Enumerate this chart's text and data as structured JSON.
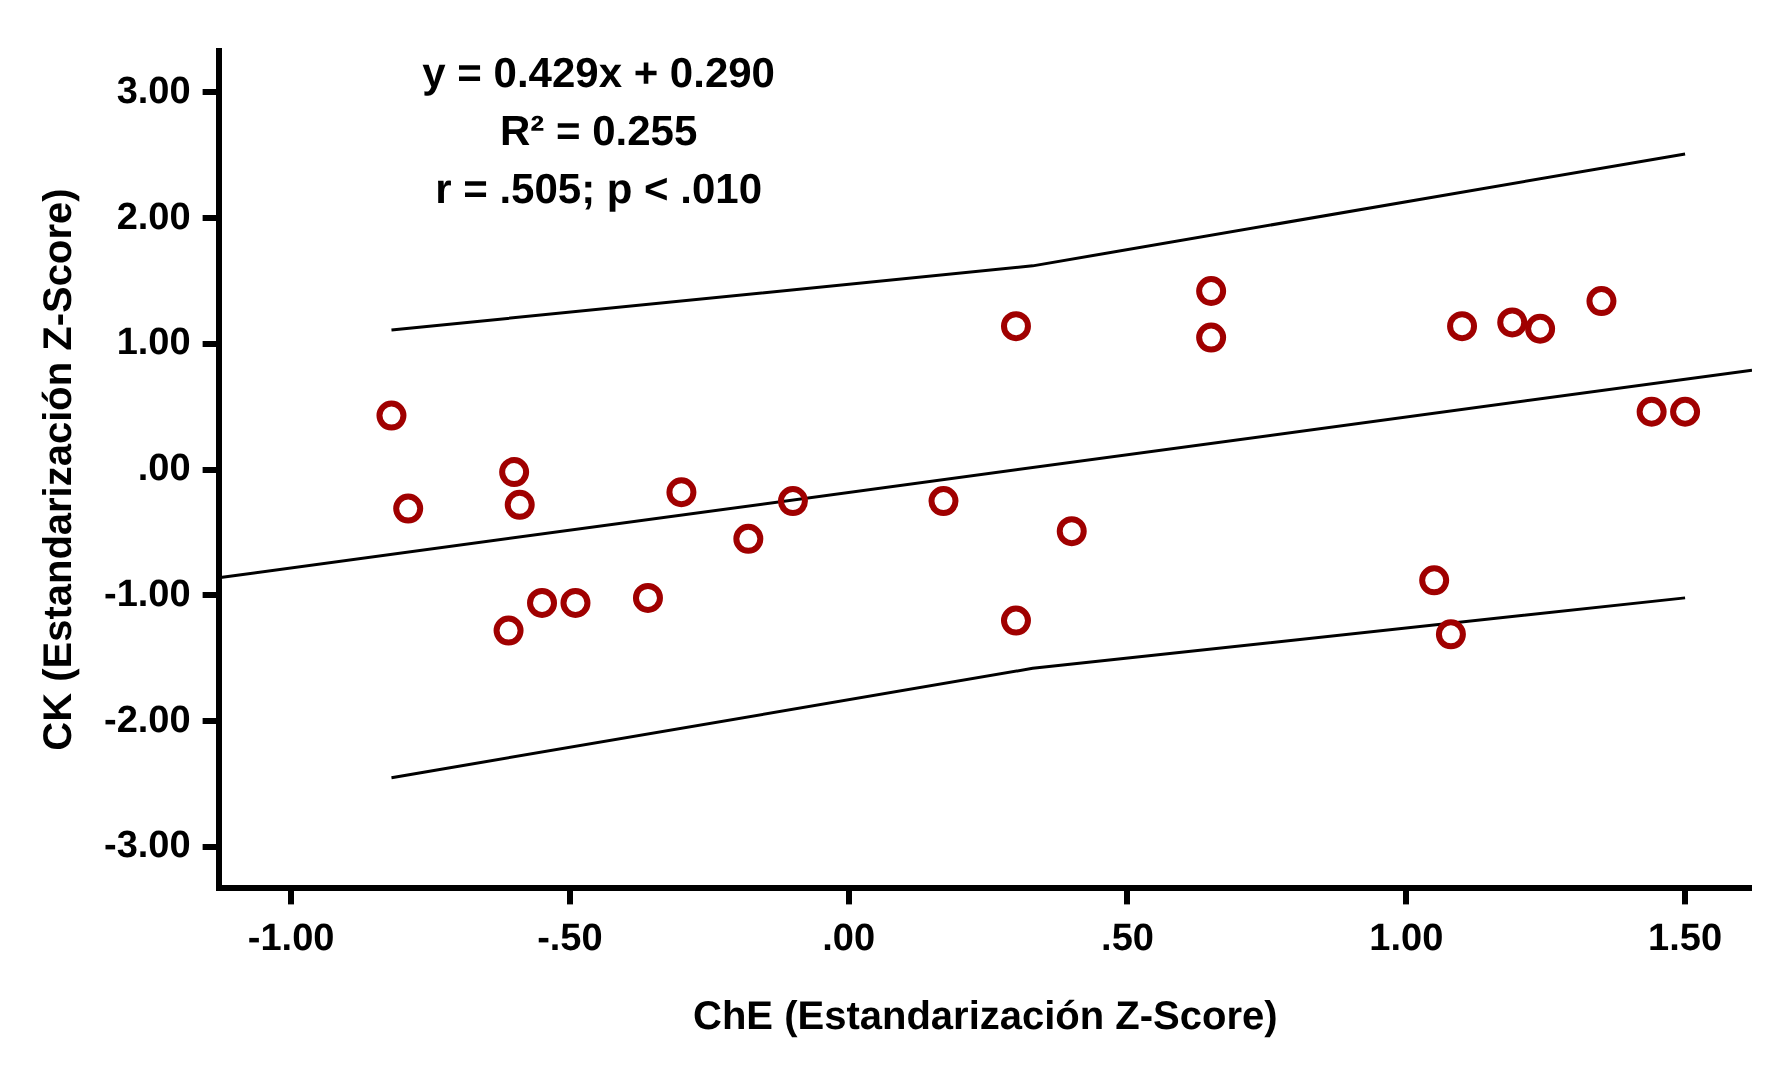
{
  "chart_data": {
    "type": "scatter",
    "xlabel": "ChE (Estandarización Z-Score)",
    "ylabel": "CK (Estandarización Z-Score)",
    "annotations": [
      "y = 0.429x + 0.290",
      "R² = 0.255",
      "r = .505; p < .010"
    ],
    "series": [
      {
        "color": "#a00000",
        "marker": "circle",
        "x": [
          -0.82,
          -0.79,
          -0.6,
          -0.59,
          -0.61,
          -0.55,
          -0.49,
          -0.36,
          -0.3,
          -0.18,
          -0.1,
          0.17,
          0.3,
          0.3,
          0.4,
          0.65,
          0.65,
          1.05,
          1.08,
          1.1,
          1.19,
          1.24,
          1.35,
          1.44,
          1.5
        ],
        "values": [
          0.43,
          -0.31,
          -0.02,
          -0.28,
          -1.28,
          -1.06,
          -1.06,
          -1.02,
          -0.18,
          -0.55,
          -0.25,
          -0.25,
          1.14,
          -1.2,
          -0.49,
          1.42,
          1.05,
          -0.88,
          -1.31,
          1.14,
          1.17,
          1.12,
          1.34,
          0.46,
          0.46
        ]
      },
      {
        "type": "line",
        "color": "#000000",
        "marker": "none",
        "x": [
          -1.13,
          1.62
        ],
        "values": [
          -0.86,
          0.79
        ]
      },
      {
        "type": "line",
        "color": "#000000",
        "marker": "none",
        "x": [
          -0.82,
          0.33,
          1.5
        ],
        "values": [
          1.11,
          1.62,
          2.51
        ]
      },
      {
        "type": "line",
        "color": "#000000",
        "marker": "none",
        "x": [
          -0.82,
          0.33,
          1.5
        ],
        "values": [
          -2.45,
          -1.58,
          -1.02
        ]
      }
    ],
    "xlim": [
      -1.13,
      1.62
    ],
    "ylim": [
      -3.33,
      3.33
    ],
    "xticks": [
      {
        "value": -1,
        "label": "-1.00"
      },
      {
        "value": -0.5,
        "label": "-.50"
      },
      {
        "value": 0,
        "label": ".00"
      },
      {
        "value": 0.5,
        "label": ".50"
      },
      {
        "value": 1,
        "label": "1.00"
      },
      {
        "value": 1.5,
        "label": "1.50"
      }
    ],
    "yticks": [
      {
        "value": -3,
        "label": "-3.00"
      },
      {
        "value": -2,
        "label": "-2.00"
      },
      {
        "value": -1,
        "label": "-1.00"
      },
      {
        "value": 0,
        "label": ".00"
      },
      {
        "value": 1,
        "label": "1.00"
      },
      {
        "value": 2,
        "label": "2.00"
      },
      {
        "value": 3,
        "label": "3.00"
      }
    ],
    "grid": false,
    "legend": false
  }
}
